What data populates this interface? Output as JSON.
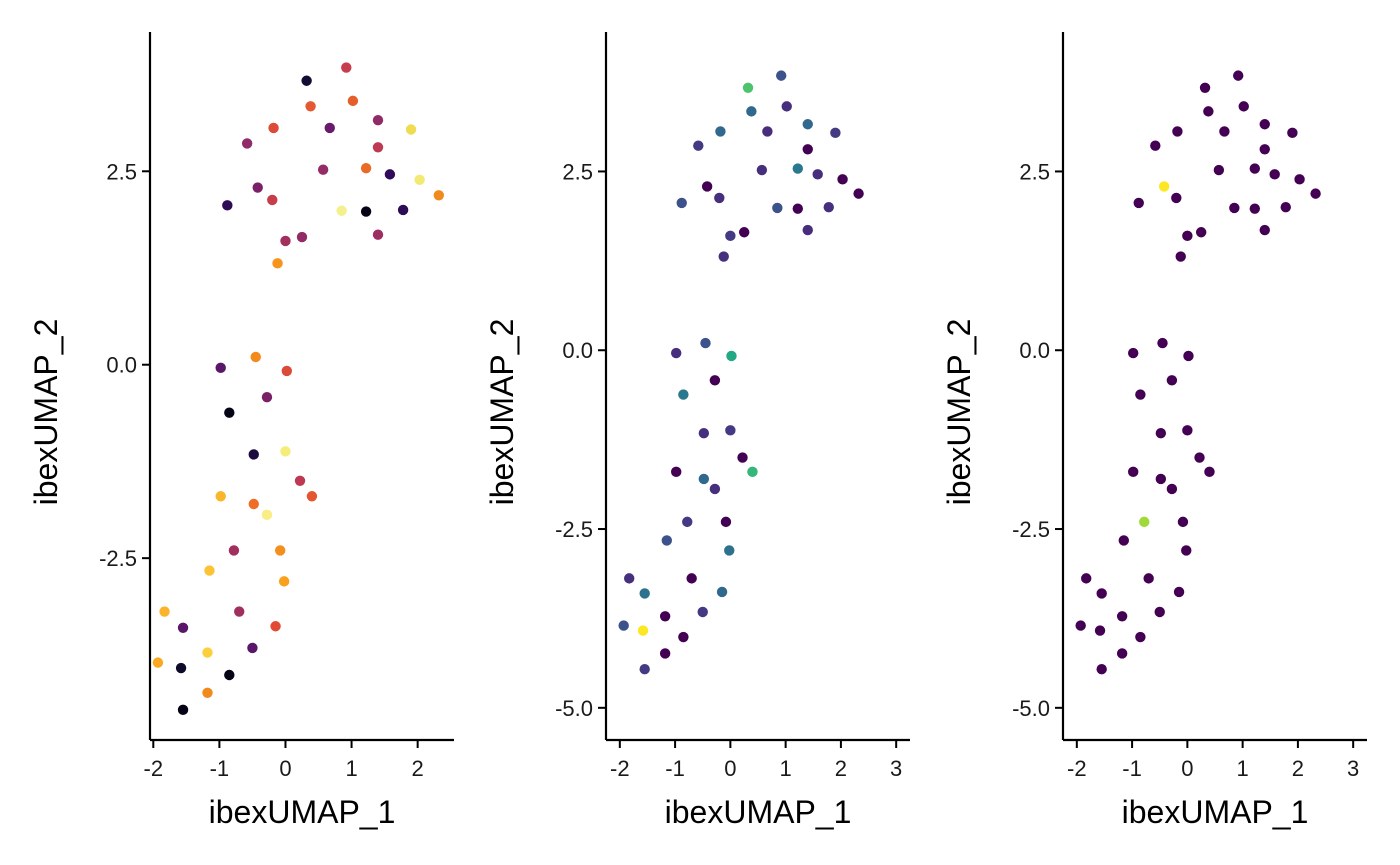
{
  "chart_data": [
    {
      "type": "scatter",
      "xlabel": "ibexUMAP_1",
      "ylabel": "ibexUMAP_2",
      "xlim": [
        -2.05,
        2.55
      ],
      "ylim": [
        -4.85,
        4.3
      ],
      "xticks": [
        -2,
        -1,
        0,
        1,
        2
      ],
      "yticks": [
        -2.5,
        0.0,
        2.5
      ],
      "xtick_labels": [
        "-2",
        "-1",
        "0",
        "1",
        "2"
      ],
      "ytick_labels": [
        "-2.5",
        "0.0",
        "2.5"
      ],
      "grid": false,
      "color_scale": "inferno",
      "points": [
        {
          "x": 0.32,
          "y": 3.67,
          "color": "#140b35"
        },
        {
          "x": 0.92,
          "y": 3.84,
          "color": "#c73d4b"
        },
        {
          "x": 0.38,
          "y": 3.34,
          "color": "#e35a32"
        },
        {
          "x": 1.02,
          "y": 3.41,
          "color": "#e45f2a"
        },
        {
          "x": -0.18,
          "y": 3.06,
          "color": "#dc4a38"
        },
        {
          "x": 0.67,
          "y": 3.06,
          "color": "#6a1a6a"
        },
        {
          "x": 1.4,
          "y": 3.16,
          "color": "#902b68"
        },
        {
          "x": 1.9,
          "y": 3.04,
          "color": "#f0dc52"
        },
        {
          "x": -0.58,
          "y": 2.86,
          "color": "#902b68"
        },
        {
          "x": 1.4,
          "y": 2.81,
          "color": "#bd3a52"
        },
        {
          "x": 0.57,
          "y": 2.52,
          "color": "#942c68"
        },
        {
          "x": 1.22,
          "y": 2.54,
          "color": "#ea6a27"
        },
        {
          "x": 1.58,
          "y": 2.46,
          "color": "#310b5b"
        },
        {
          "x": 2.03,
          "y": 2.39,
          "color": "#f2ea72"
        },
        {
          "x": -0.42,
          "y": 2.29,
          "color": "#7b2068"
        },
        {
          "x": -0.2,
          "y": 2.13,
          "color": "#c73d4b"
        },
        {
          "x": 2.32,
          "y": 2.19,
          "color": "#f08a1c"
        },
        {
          "x": -0.88,
          "y": 2.06,
          "color": "#2e0b55"
        },
        {
          "x": 0.85,
          "y": 1.99,
          "color": "#f5f08e"
        },
        {
          "x": 1.22,
          "y": 1.98,
          "color": "#050416"
        },
        {
          "x": 1.78,
          "y": 2.0,
          "color": "#2e0b55"
        },
        {
          "x": 1.4,
          "y": 1.68,
          "color": "#9c2e61"
        },
        {
          "x": 0.25,
          "y": 1.65,
          "color": "#902b68"
        },
        {
          "x": 0.0,
          "y": 1.6,
          "color": "#a22f5e"
        },
        {
          "x": -0.12,
          "y": 1.31,
          "color": "#f7941b"
        },
        {
          "x": -0.45,
          "y": 0.1,
          "color": "#f28a1c"
        },
        {
          "x": -0.98,
          "y": -0.04,
          "color": "#5a1668"
        },
        {
          "x": 0.02,
          "y": -0.08,
          "color": "#dc4a38"
        },
        {
          "x": -0.28,
          "y": -0.42,
          "color": "#7b2068"
        },
        {
          "x": -0.85,
          "y": -0.62,
          "color": "#050416"
        },
        {
          "x": -0.48,
          "y": -1.16,
          "color": "#1b0c40"
        },
        {
          "x": 0.0,
          "y": -1.12,
          "color": "#f5ec7a"
        },
        {
          "x": 0.22,
          "y": -1.5,
          "color": "#bd3a52"
        },
        {
          "x": 0.4,
          "y": -1.7,
          "color": "#e45532"
        },
        {
          "x": -0.98,
          "y": -1.7,
          "color": "#fbb528"
        },
        {
          "x": -0.48,
          "y": -1.8,
          "color": "#ef6d26"
        },
        {
          "x": -0.28,
          "y": -1.94,
          "color": "#f9ed86"
        },
        {
          "x": -0.78,
          "y": -2.4,
          "color": "#a02f5e"
        },
        {
          "x": -0.08,
          "y": -2.4,
          "color": "#f48e1c"
        },
        {
          "x": -1.15,
          "y": -2.66,
          "color": "#fcc334"
        },
        {
          "x": -0.02,
          "y": -2.8,
          "color": "#f9a01c"
        },
        {
          "x": -1.83,
          "y": -3.19,
          "color": "#fbb32b"
        },
        {
          "x": -0.7,
          "y": -3.19,
          "color": "#a02f5e"
        },
        {
          "x": -0.15,
          "y": -3.38,
          "color": "#e14a35"
        },
        {
          "x": -1.55,
          "y": -3.4,
          "color": "#5a1668"
        },
        {
          "x": -1.18,
          "y": -3.72,
          "color": "#fcd03d"
        },
        {
          "x": -0.5,
          "y": -3.66,
          "color": "#5a1668"
        },
        {
          "x": -1.58,
          "y": -3.92,
          "color": "#0e0a2a"
        },
        {
          "x": -0.85,
          "y": -4.01,
          "color": "#050416"
        },
        {
          "x": -1.93,
          "y": -3.85,
          "color": "#f9a820"
        },
        {
          "x": -1.18,
          "y": -4.24,
          "color": "#f18a1c"
        },
        {
          "x": -1.55,
          "y": -4.46,
          "color": "#050416"
        }
      ]
    },
    {
      "type": "scatter",
      "xlabel": "ibexUMAP_1",
      "ylabel": "ibexUMAP_2",
      "xlim": [
        -2.25,
        3.25
      ],
      "ylim": [
        -5.45,
        4.45
      ],
      "xticks": [
        -2,
        -1,
        0,
        1,
        2,
        3
      ],
      "yticks": [
        -5.0,
        -2.5,
        0.0,
        2.5
      ],
      "xtick_labels": [
        "-2",
        "-1",
        "0",
        "1",
        "2",
        "3"
      ],
      "ytick_labels": [
        "-5.0",
        "-2.5",
        "0.0",
        "2.5"
      ],
      "grid": false,
      "color_scale": "viridis",
      "points": [
        {
          "x": 0.32,
          "y": 3.67,
          "color": "#4dc36b"
        },
        {
          "x": 0.92,
          "y": 3.84,
          "color": "#3b528b"
        },
        {
          "x": 0.38,
          "y": 3.34,
          "color": "#31688e"
        },
        {
          "x": 1.02,
          "y": 3.41,
          "color": "#46307e"
        },
        {
          "x": -0.18,
          "y": 3.06,
          "color": "#31688e"
        },
        {
          "x": 0.67,
          "y": 3.06,
          "color": "#472d7b"
        },
        {
          "x": 1.4,
          "y": 3.16,
          "color": "#31688e"
        },
        {
          "x": 1.9,
          "y": 3.04,
          "color": "#443a83"
        },
        {
          "x": -0.58,
          "y": 2.86,
          "color": "#443a83"
        },
        {
          "x": 1.4,
          "y": 2.81,
          "color": "#440154"
        },
        {
          "x": 0.57,
          "y": 2.52,
          "color": "#46307e"
        },
        {
          "x": 1.22,
          "y": 2.54,
          "color": "#2a788e"
        },
        {
          "x": 1.58,
          "y": 2.46,
          "color": "#472d7b"
        },
        {
          "x": 2.03,
          "y": 2.39,
          "color": "#440154"
        },
        {
          "x": -0.42,
          "y": 2.29,
          "color": "#440154"
        },
        {
          "x": -0.2,
          "y": 2.13,
          "color": "#46307e"
        },
        {
          "x": 2.32,
          "y": 2.19,
          "color": "#440154"
        },
        {
          "x": -0.88,
          "y": 2.06,
          "color": "#3b528b"
        },
        {
          "x": 0.85,
          "y": 1.99,
          "color": "#3b528b"
        },
        {
          "x": 1.22,
          "y": 1.98,
          "color": "#440154"
        },
        {
          "x": 1.78,
          "y": 2.0,
          "color": "#46307e"
        },
        {
          "x": 1.4,
          "y": 1.68,
          "color": "#472d7b"
        },
        {
          "x": 0.25,
          "y": 1.65,
          "color": "#440154"
        },
        {
          "x": 0.0,
          "y": 1.6,
          "color": "#443a83"
        },
        {
          "x": -0.12,
          "y": 1.31,
          "color": "#46307e"
        },
        {
          "x": -0.45,
          "y": 0.1,
          "color": "#3b528b"
        },
        {
          "x": -0.98,
          "y": -0.04,
          "color": "#46307e"
        },
        {
          "x": 0.02,
          "y": -0.08,
          "color": "#22a884"
        },
        {
          "x": -0.28,
          "y": -0.42,
          "color": "#440154"
        },
        {
          "x": -0.85,
          "y": -0.62,
          "color": "#2a788e"
        },
        {
          "x": -0.48,
          "y": -1.16,
          "color": "#46307e"
        },
        {
          "x": 0.0,
          "y": -1.12,
          "color": "#443a83"
        },
        {
          "x": 0.22,
          "y": -1.5,
          "color": "#440154"
        },
        {
          "x": 0.4,
          "y": -1.7,
          "color": "#35b779"
        },
        {
          "x": -0.98,
          "y": -1.7,
          "color": "#440154"
        },
        {
          "x": -0.48,
          "y": -1.8,
          "color": "#31688e"
        },
        {
          "x": -0.28,
          "y": -1.94,
          "color": "#46307e"
        },
        {
          "x": -0.78,
          "y": -2.4,
          "color": "#443a83"
        },
        {
          "x": -0.08,
          "y": -2.4,
          "color": "#440154"
        },
        {
          "x": -1.15,
          "y": -2.66,
          "color": "#3b528b"
        },
        {
          "x": -0.02,
          "y": -2.8,
          "color": "#2c728e"
        },
        {
          "x": -1.83,
          "y": -3.19,
          "color": "#46307e"
        },
        {
          "x": -0.7,
          "y": -3.19,
          "color": "#440154"
        },
        {
          "x": -0.15,
          "y": -3.38,
          "color": "#31688e"
        },
        {
          "x": -1.55,
          "y": -3.4,
          "color": "#2c728e"
        },
        {
          "x": -1.18,
          "y": -3.72,
          "color": "#440154"
        },
        {
          "x": -0.5,
          "y": -3.66,
          "color": "#443a83"
        },
        {
          "x": -1.58,
          "y": -3.92,
          "color": "#fde725"
        },
        {
          "x": -0.85,
          "y": -4.01,
          "color": "#440154"
        },
        {
          "x": -1.93,
          "y": -3.85,
          "color": "#3b528b"
        },
        {
          "x": -1.18,
          "y": -4.24,
          "color": "#440154"
        },
        {
          "x": -1.55,
          "y": -4.46,
          "color": "#443a83"
        }
      ]
    },
    {
      "type": "scatter",
      "xlabel": "ibexUMAP_1",
      "ylabel": "ibexUMAP_2",
      "xlim": [
        -2.25,
        3.25
      ],
      "ylim": [
        -5.45,
        4.45
      ],
      "xticks": [
        -2,
        -1,
        0,
        1,
        2,
        3
      ],
      "yticks": [
        -5.0,
        -2.5,
        0.0,
        2.5
      ],
      "xtick_labels": [
        "-2",
        "-1",
        "0",
        "1",
        "2",
        "3"
      ],
      "ytick_labels": [
        "-5.0",
        "-2.5",
        "0.0",
        "2.5"
      ],
      "grid": false,
      "color_scale": "viridis",
      "points": [
        {
          "x": 0.32,
          "y": 3.67,
          "color": "#440154"
        },
        {
          "x": 0.92,
          "y": 3.84,
          "color": "#440154"
        },
        {
          "x": 0.38,
          "y": 3.34,
          "color": "#440154"
        },
        {
          "x": 1.02,
          "y": 3.41,
          "color": "#440154"
        },
        {
          "x": -0.18,
          "y": 3.06,
          "color": "#440154"
        },
        {
          "x": 0.67,
          "y": 3.06,
          "color": "#440154"
        },
        {
          "x": 1.4,
          "y": 3.16,
          "color": "#440154"
        },
        {
          "x": 1.9,
          "y": 3.04,
          "color": "#440154"
        },
        {
          "x": -0.58,
          "y": 2.86,
          "color": "#440154"
        },
        {
          "x": 1.4,
          "y": 2.81,
          "color": "#440154"
        },
        {
          "x": 0.57,
          "y": 2.52,
          "color": "#440154"
        },
        {
          "x": 1.22,
          "y": 2.54,
          "color": "#440154"
        },
        {
          "x": 1.58,
          "y": 2.46,
          "color": "#440154"
        },
        {
          "x": 2.03,
          "y": 2.39,
          "color": "#440154"
        },
        {
          "x": -0.42,
          "y": 2.29,
          "color": "#fde725"
        },
        {
          "x": -0.2,
          "y": 2.13,
          "color": "#440154"
        },
        {
          "x": 2.32,
          "y": 2.19,
          "color": "#440154"
        },
        {
          "x": -0.88,
          "y": 2.06,
          "color": "#440154"
        },
        {
          "x": 0.85,
          "y": 1.99,
          "color": "#440154"
        },
        {
          "x": 1.22,
          "y": 1.98,
          "color": "#440154"
        },
        {
          "x": 1.78,
          "y": 2.0,
          "color": "#440154"
        },
        {
          "x": 1.4,
          "y": 1.68,
          "color": "#440154"
        },
        {
          "x": 0.25,
          "y": 1.65,
          "color": "#440154"
        },
        {
          "x": 0.0,
          "y": 1.6,
          "color": "#440154"
        },
        {
          "x": -0.12,
          "y": 1.31,
          "color": "#440154"
        },
        {
          "x": -0.45,
          "y": 0.1,
          "color": "#440154"
        },
        {
          "x": -0.98,
          "y": -0.04,
          "color": "#440154"
        },
        {
          "x": 0.02,
          "y": -0.08,
          "color": "#440154"
        },
        {
          "x": -0.28,
          "y": -0.42,
          "color": "#440154"
        },
        {
          "x": -0.85,
          "y": -0.62,
          "color": "#440154"
        },
        {
          "x": -0.48,
          "y": -1.16,
          "color": "#440154"
        },
        {
          "x": 0.0,
          "y": -1.12,
          "color": "#440154"
        },
        {
          "x": 0.22,
          "y": -1.5,
          "color": "#440154"
        },
        {
          "x": 0.4,
          "y": -1.7,
          "color": "#440154"
        },
        {
          "x": -0.98,
          "y": -1.7,
          "color": "#440154"
        },
        {
          "x": -0.48,
          "y": -1.8,
          "color": "#440154"
        },
        {
          "x": -0.28,
          "y": -1.94,
          "color": "#440154"
        },
        {
          "x": -0.78,
          "y": -2.4,
          "color": "#a0da39"
        },
        {
          "x": -0.08,
          "y": -2.4,
          "color": "#440154"
        },
        {
          "x": -1.15,
          "y": -2.66,
          "color": "#440154"
        },
        {
          "x": -0.02,
          "y": -2.8,
          "color": "#440154"
        },
        {
          "x": -1.83,
          "y": -3.19,
          "color": "#440154"
        },
        {
          "x": -0.7,
          "y": -3.19,
          "color": "#440154"
        },
        {
          "x": -0.15,
          "y": -3.38,
          "color": "#440154"
        },
        {
          "x": -1.55,
          "y": -3.4,
          "color": "#440154"
        },
        {
          "x": -1.18,
          "y": -3.72,
          "color": "#440154"
        },
        {
          "x": -0.5,
          "y": -3.66,
          "color": "#440154"
        },
        {
          "x": -1.58,
          "y": -3.92,
          "color": "#440154"
        },
        {
          "x": -0.85,
          "y": -4.01,
          "color": "#440154"
        },
        {
          "x": -1.93,
          "y": -3.85,
          "color": "#440154"
        },
        {
          "x": -1.18,
          "y": -4.24,
          "color": "#440154"
        },
        {
          "x": -1.55,
          "y": -4.46,
          "color": "#440154"
        }
      ]
    }
  ]
}
